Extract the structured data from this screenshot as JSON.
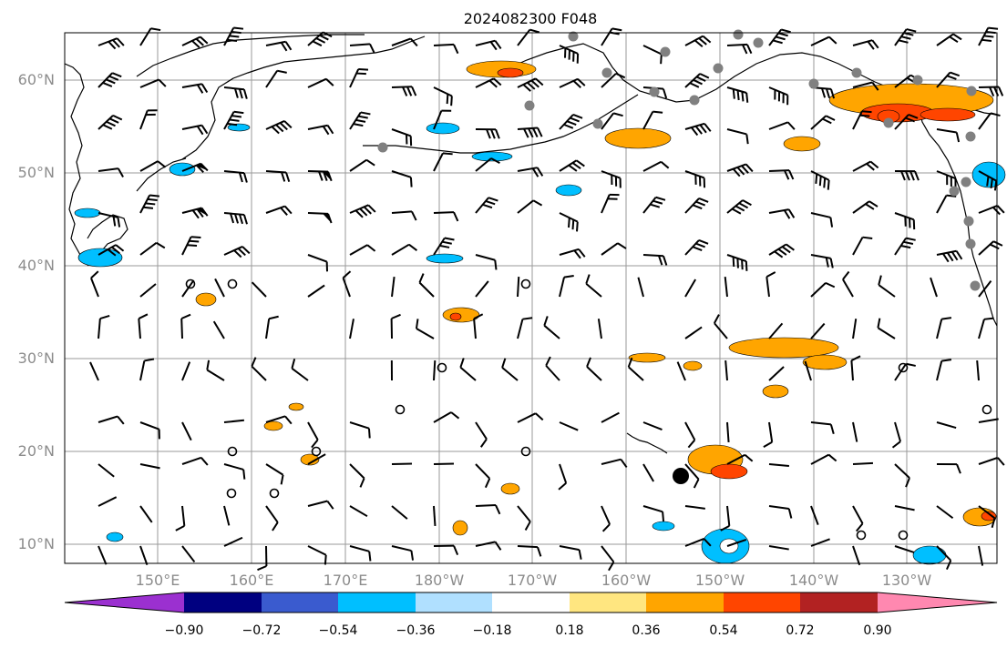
{
  "title": "2024082300 F048",
  "map": {
    "lat_labels": [
      "60°N",
      "50°N",
      "40°N",
      "30°N",
      "20°N",
      "10°N"
    ],
    "lon_labels": [
      "150°E",
      "160°E",
      "170°E",
      "180°W",
      "170°W",
      "160°W",
      "150°W",
      "140°W",
      "130°W"
    ],
    "grid": true,
    "gridline_color": "#9a9a9a",
    "coastline_color": "#000000"
  },
  "colorbar": {
    "colors": [
      "#9b30d0",
      "#000080",
      "#3a5bcf",
      "#00bfff",
      "#b0e0ff",
      "#ffffff",
      "#ffe680",
      "#ffa500",
      "#ff4500",
      "#b22222",
      "#ff88b0"
    ],
    "tick_labels": [
      "−0.90",
      "−0.72",
      "−0.54",
      "−0.36",
      "−0.18",
      "0.18",
      "0.36",
      "0.54",
      "0.72",
      "0.90"
    ]
  },
  "markers": {
    "storm_marker_color": "#000000",
    "station_dot_color": "#808080"
  }
}
